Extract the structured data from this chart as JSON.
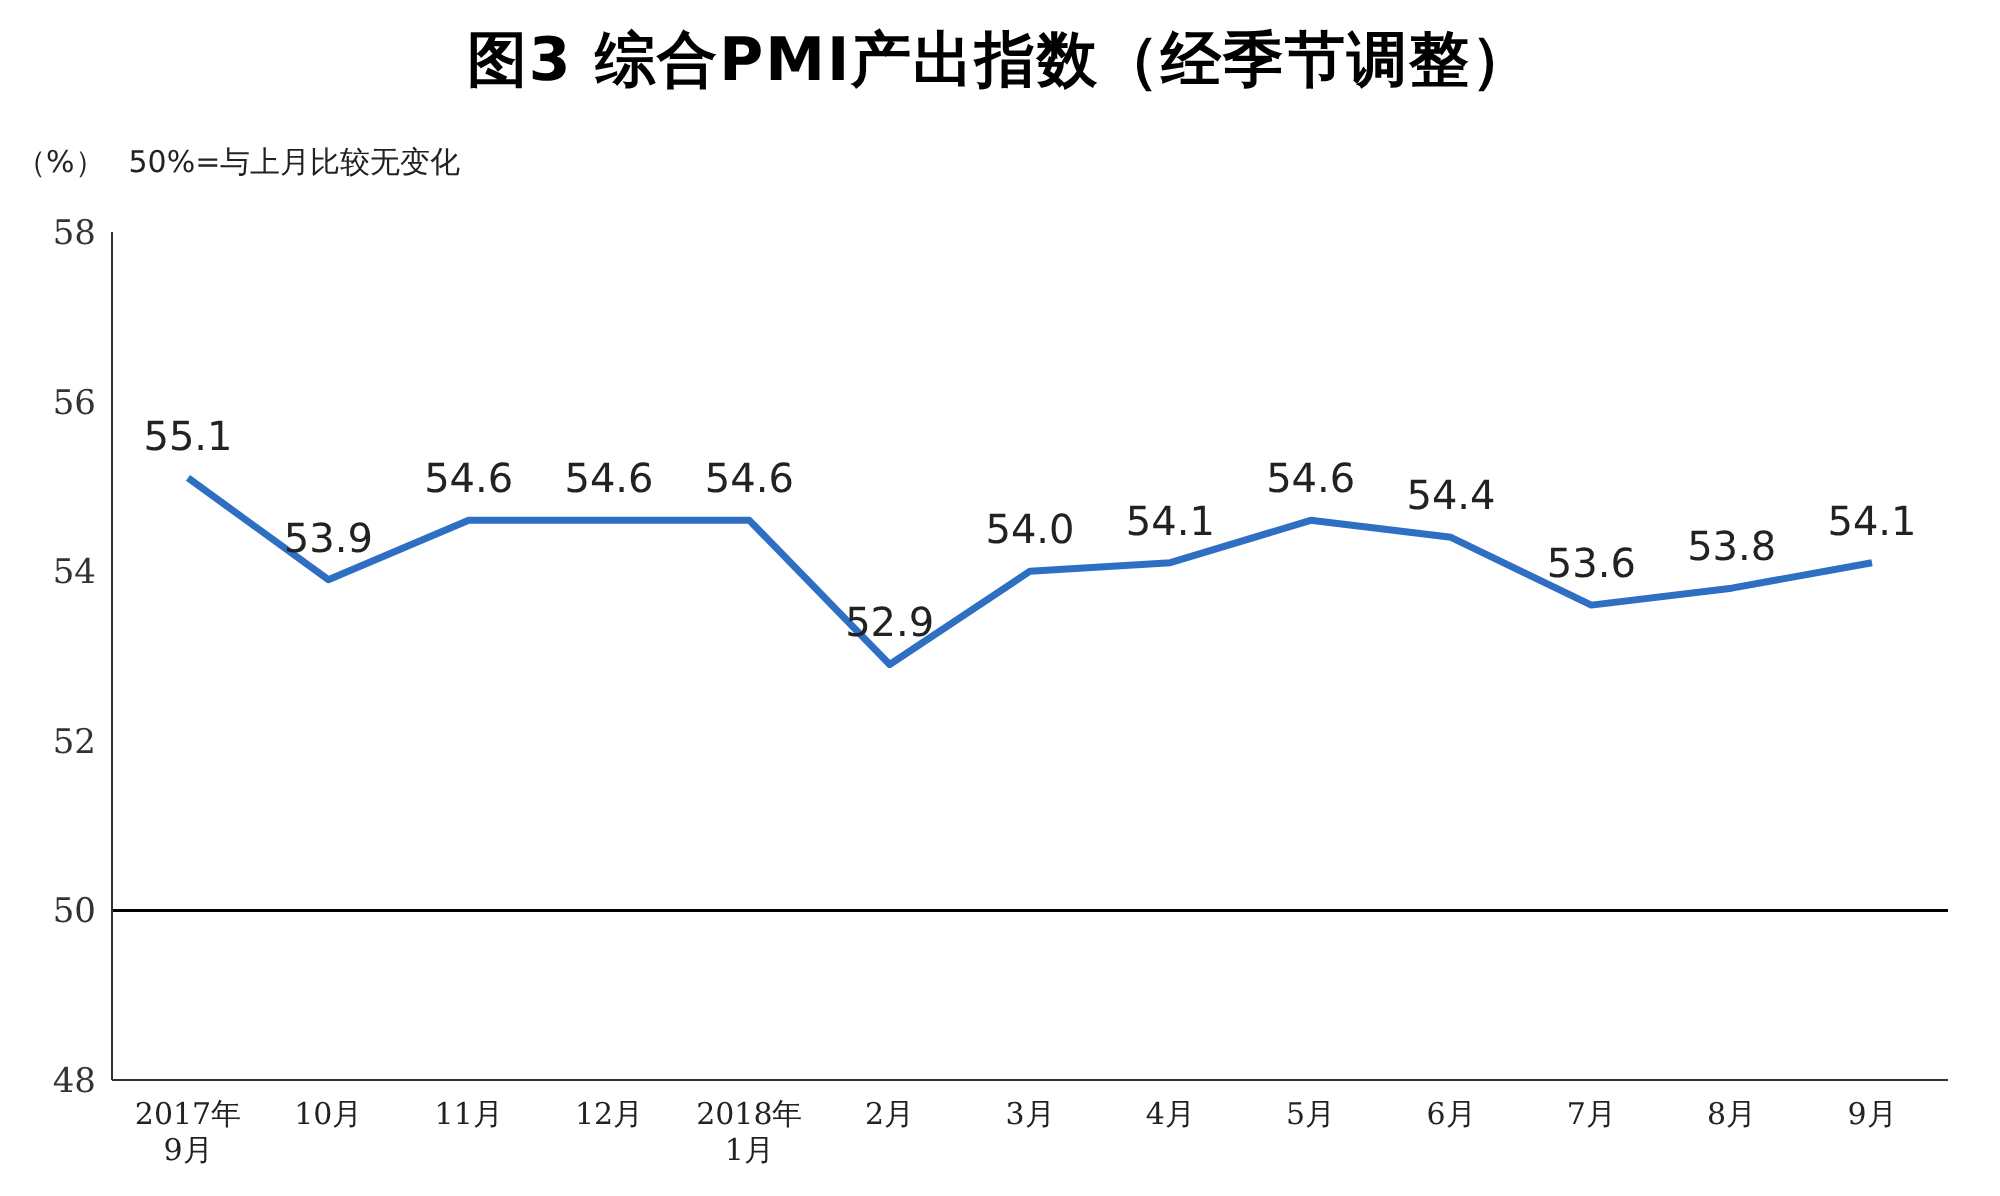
{
  "chart_data": {
    "type": "line",
    "title": "图3 综合PMI产出指数（经季节调整）",
    "ylabel": "（%）",
    "annotations": [
      "50%=与上月比较无变化"
    ],
    "categories": [
      "2017年\n9月",
      "10月",
      "11月",
      "12月",
      "2018年\n1月",
      "2月",
      "3月",
      "4月",
      "5月",
      "6月",
      "7月",
      "8月",
      "9月"
    ],
    "series": [
      {
        "color": "#2e6fc4",
        "values": [
          55.1,
          53.9,
          54.6,
          54.6,
          54.6,
          52.9,
          54.0,
          54.1,
          54.6,
          54.4,
          53.6,
          53.8,
          54.1
        ],
        "value_labels": [
          "55.1",
          "53.9",
          "54.6",
          "54.6",
          "54.6",
          "52.9",
          "54.0",
          "54.1",
          "54.6",
          "54.4",
          "53.6",
          "53.8",
          "54.1"
        ]
      }
    ],
    "ylim": [
      48,
      58
    ],
    "yticks": [
      48,
      50,
      52,
      54,
      56,
      58
    ],
    "line_style": "solid",
    "grid": false,
    "legend": false,
    "ref_lines": [
      {
        "axis": "y",
        "value": 50,
        "color": "#000000"
      }
    ]
  }
}
